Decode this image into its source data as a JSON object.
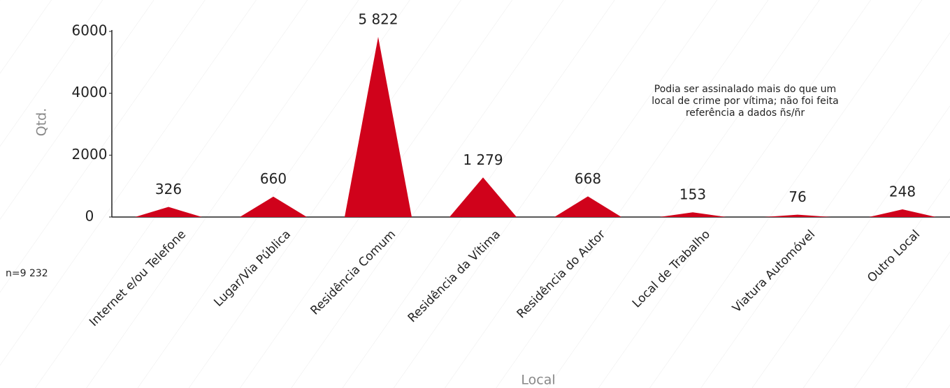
{
  "chart_data": {
    "type": "bar",
    "shape": "triangle",
    "categories": [
      "Internet e/ou Telefone",
      "Lugar/Via Pública",
      "Residência Comum",
      "Residência da Vítima",
      "Residência do Autor",
      "Local de Trabalho",
      "Viatura Automóvel",
      "Outro Local"
    ],
    "values": [
      326,
      660,
      5822,
      1279,
      668,
      153,
      76,
      248
    ],
    "value_labels": [
      "326",
      "660",
      "5 822",
      "1 279",
      "668",
      "153",
      "76",
      "248"
    ],
    "color": "#d0021b",
    "ylim": [
      0,
      6000
    ],
    "yticks": [
      0,
      2000,
      4000,
      6000
    ],
    "y_label": "Qtd.",
    "x_label": "Local",
    "annotation": [
      "Podia ser assinalado mais do que um",
      "local de crime por vítima; não foi feita",
      "referência a dados ñs/ñr"
    ],
    "note": "n=9 232"
  }
}
